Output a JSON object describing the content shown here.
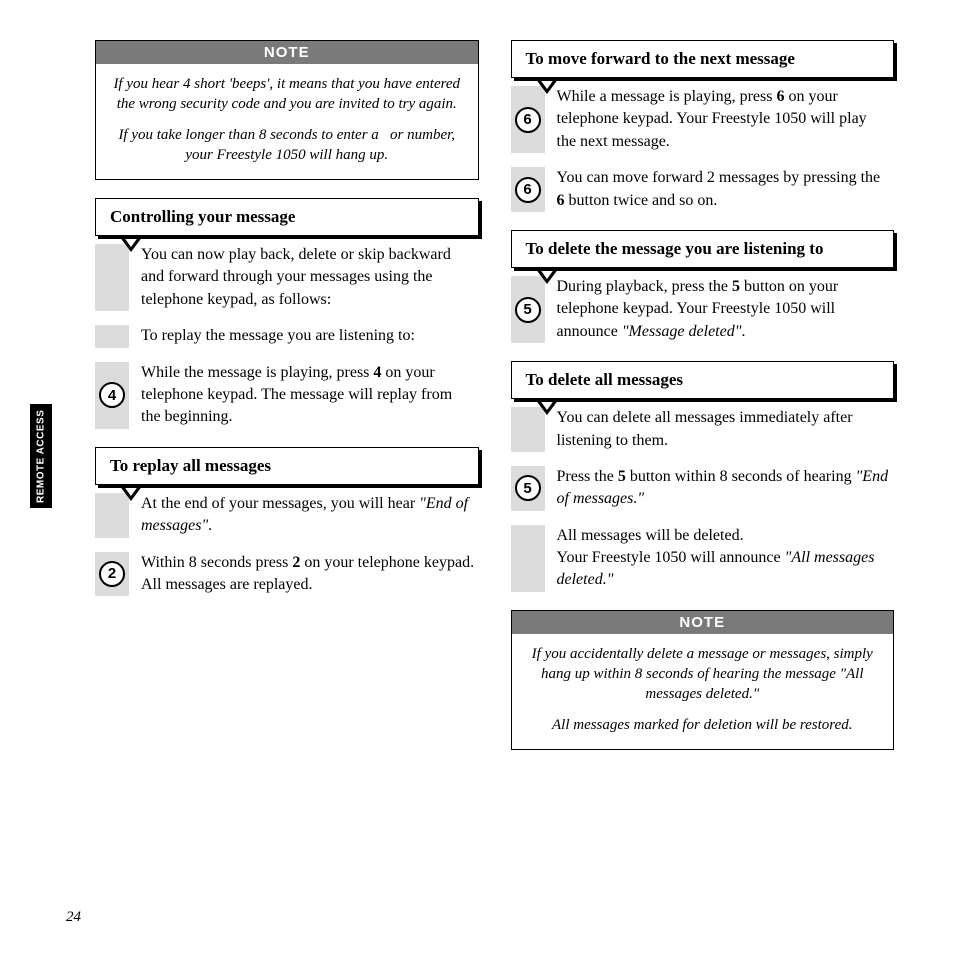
{
  "sideTab": "REMOTE ACCESS",
  "pageNumber": "24",
  "note1": {
    "header": "NOTE",
    "paras": [
      "If you hear 4 short 'beeps', it means that you have entered the wrong security code and you are invited to try again.",
      "If you take longer than 8 seconds to enter a   or number, your Freestyle 1050 will hang up."
    ]
  },
  "note2": {
    "header": "NOTE",
    "paras": [
      "If you accidentally delete a message or messages, simply hang up within 8 seconds of hearing the message \"All messages deleted.\"",
      "All messages marked for deletion will be restored."
    ]
  },
  "sections": {
    "controlling": {
      "title": "Controlling your message",
      "rows": [
        {
          "key": "",
          "html": "You can now play back, delete or skip backward and forward through your messages using the telephone keypad, as follows:"
        },
        {
          "key": "",
          "html": "To replay the message you are listening to:"
        },
        {
          "key": "4",
          "html": "While the message is playing, press <b>4</b> on your telephone keypad. The message will replay from the beginning."
        }
      ]
    },
    "replayAll": {
      "title": "To replay all messages",
      "rows": [
        {
          "key": "",
          "html": "At the end of your messages, you will hear <i>\"End of messages\"</i>."
        },
        {
          "key": "2",
          "html": "Within 8 seconds press <b>2</b> on your telephone keypad. All messages are replayed."
        }
      ]
    },
    "moveForward": {
      "title": "To move forward to the next message",
      "rows": [
        {
          "key": "6",
          "html": "While a message is playing, press <b>6</b> on your telephone keypad. Your Freestyle 1050 will play the next message."
        },
        {
          "key": "6",
          "html": "You can move forward 2 messages by pressing the <b>6</b> button twice and so on."
        }
      ]
    },
    "deleteOne": {
      "title": "To delete the message you are listening to",
      "rows": [
        {
          "key": "5",
          "html": "During playback, press the <b>5</b> button on your telephone keypad. Your Freestyle 1050 will announce <i>\"Message deleted\"</i>."
        }
      ]
    },
    "deleteAll": {
      "title": "To delete all messages",
      "rows": [
        {
          "key": "",
          "html": "You can delete all messages immediately after listening to them."
        },
        {
          "key": "5",
          "html": "Press the <b>5</b> button within 8 seconds of hearing <i>\"End of messages.\"</i>"
        },
        {
          "key": "",
          "html": "All messages will be deleted.<br>Your Freestyle 1050 will announce <i>\"All messages deleted.\"</i>"
        }
      ]
    }
  }
}
